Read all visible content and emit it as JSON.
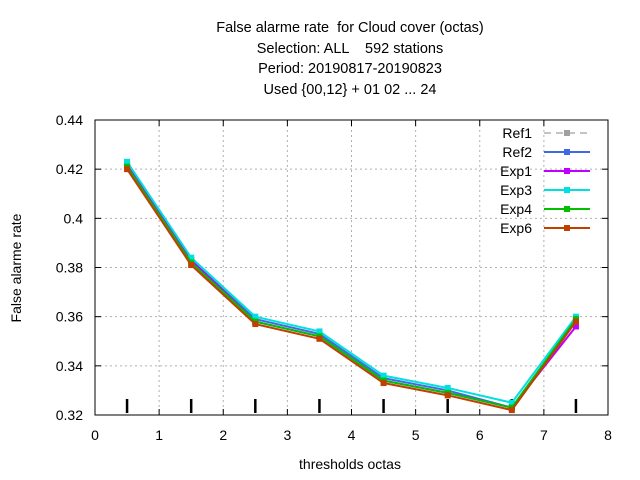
{
  "chart_data": {
    "type": "line",
    "title_lines": [
      "False alarme rate  for Cloud cover (octas)",
      "Selection: ALL    592 stations",
      "Period: 20190817-20190823",
      "Used {00,12} + 01 02 ... 24"
    ],
    "xlabel": "thresholds octas",
    "ylabel": "False alarme rate",
    "xlim": [
      0,
      8
    ],
    "ylim": [
      0.32,
      0.44
    ],
    "x_ticks": [
      0,
      1,
      2,
      3,
      4,
      5,
      6,
      7,
      8
    ],
    "y_ticks": [
      0.32,
      0.34,
      0.36,
      0.38,
      0.4,
      0.42,
      0.44
    ],
    "y_tick_labels": [
      "0.32",
      "0.34",
      "0.36",
      "0.38",
      "0.4",
      "0.42",
      "0.44"
    ],
    "grid": true,
    "legend_position": "top-right",
    "x": [
      0.5,
      1.5,
      2.5,
      3.5,
      4.5,
      5.5,
      6.5,
      7.5
    ],
    "series": [
      {
        "name": "Ref1",
        "color": "#a0a0a0",
        "dashed": true,
        "values": [
          0.421,
          0.383,
          0.358,
          0.352,
          0.334,
          0.329,
          0.323,
          0.358
        ]
      },
      {
        "name": "Ref2",
        "color": "#4169e1",
        "dashed": false,
        "values": [
          0.422,
          0.383,
          0.359,
          0.353,
          0.335,
          0.33,
          0.323,
          0.359
        ]
      },
      {
        "name": "Exp1",
        "color": "#c000ff",
        "dashed": false,
        "values": [
          0.422,
          0.383,
          0.358,
          0.352,
          0.334,
          0.329,
          0.323,
          0.356
        ]
      },
      {
        "name": "Exp3",
        "color": "#00e0e0",
        "dashed": false,
        "values": [
          0.423,
          0.384,
          0.36,
          0.354,
          0.336,
          0.331,
          0.325,
          0.36
        ]
      },
      {
        "name": "Exp4",
        "color": "#00c000",
        "dashed": false,
        "values": [
          0.421,
          0.382,
          0.358,
          0.352,
          0.334,
          0.329,
          0.323,
          0.359
        ]
      },
      {
        "name": "Exp6",
        "color": "#c04000",
        "dashed": false,
        "values": [
          0.42,
          0.381,
          0.357,
          0.351,
          0.333,
          0.328,
          0.322,
          0.358
        ]
      }
    ]
  }
}
